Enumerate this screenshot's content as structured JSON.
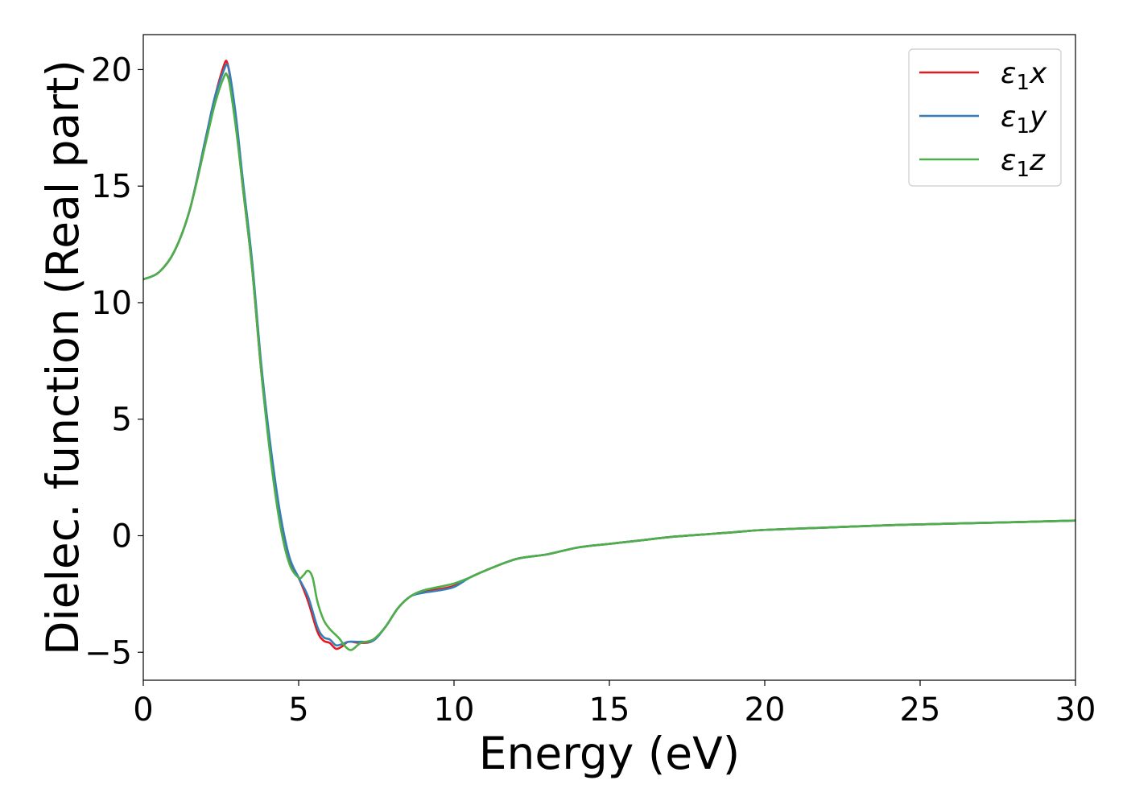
{
  "chart_data": {
    "type": "line",
    "title": "",
    "xlabel": "Energy (eV)",
    "ylabel": "Dielec. function (Real part)",
    "xlim": [
      0,
      30
    ],
    "ylim": [
      -6.2,
      21.5
    ],
    "xticks": [
      0,
      5,
      10,
      15,
      20,
      25,
      30
    ],
    "xtick_labels": [
      "0",
      "5",
      "10",
      "15",
      "20",
      "25",
      "30"
    ],
    "yticks": [
      -5,
      0,
      5,
      10,
      15,
      20
    ],
    "ytick_labels": [
      "−5",
      "0",
      "5",
      "10",
      "15",
      "20"
    ],
    "grid": false,
    "legend_position": "top-right",
    "series": [
      {
        "name": "ε₁x",
        "legend": {
          "base": "ε",
          "sub": "1",
          "var": "x"
        },
        "color": "#e41a1c",
        "x": [
          0,
          0.5,
          1.0,
          1.5,
          2.0,
          2.3,
          2.6,
          2.7,
          2.8,
          3.0,
          3.2,
          3.5,
          3.8,
          4.1,
          4.4,
          4.7,
          5.0,
          5.3,
          5.6,
          5.8,
          6.0,
          6.2,
          6.4,
          6.6,
          7.0,
          7.4,
          7.8,
          8.2,
          8.6,
          9.0,
          9.5,
          10.0,
          10.5,
          11.0,
          12.0,
          13.0,
          14.0,
          15.0,
          16.0,
          17.0,
          18.0,
          19.0,
          20.0,
          22.0,
          24.0,
          26.0,
          28.0,
          30.0
        ],
        "y": [
          11.0,
          11.3,
          12.2,
          14.0,
          17.0,
          18.8,
          20.2,
          20.3,
          19.6,
          17.5,
          15.0,
          11.5,
          7.0,
          3.5,
          0.8,
          -1.0,
          -1.8,
          -2.8,
          -4.1,
          -4.5,
          -4.6,
          -4.85,
          -4.75,
          -4.55,
          -4.6,
          -4.5,
          -3.9,
          -3.1,
          -2.6,
          -2.4,
          -2.3,
          -2.15,
          -1.8,
          -1.5,
          -1.0,
          -0.8,
          -0.5,
          -0.35,
          -0.2,
          -0.05,
          0.05,
          0.15,
          0.25,
          0.35,
          0.45,
          0.52,
          0.58,
          0.65
        ]
      },
      {
        "name": "ε₁y",
        "legend": {
          "base": "ε",
          "sub": "1",
          "var": "y"
        },
        "color": "#377eb8",
        "x": [
          0,
          0.5,
          1.0,
          1.5,
          2.0,
          2.3,
          2.6,
          2.7,
          2.8,
          3.0,
          3.2,
          3.5,
          3.8,
          4.1,
          4.4,
          4.7,
          5.0,
          5.3,
          5.6,
          5.8,
          6.0,
          6.2,
          6.4,
          6.6,
          7.0,
          7.4,
          7.8,
          8.2,
          8.6,
          9.0,
          9.5,
          10.0,
          10.5,
          11.0,
          12.0,
          13.0,
          14.0,
          15.0,
          16.0,
          17.0,
          18.0,
          19.0,
          20.0,
          22.0,
          24.0,
          26.0,
          28.0,
          30.0
        ],
        "y": [
          11.0,
          11.3,
          12.2,
          14.0,
          17.0,
          18.8,
          20.0,
          20.2,
          19.7,
          17.8,
          15.3,
          11.8,
          7.3,
          3.8,
          1.0,
          -0.9,
          -1.8,
          -2.6,
          -3.9,
          -4.35,
          -4.45,
          -4.7,
          -4.65,
          -4.55,
          -4.55,
          -4.5,
          -3.9,
          -3.1,
          -2.6,
          -2.45,
          -2.35,
          -2.2,
          -1.8,
          -1.5,
          -1.0,
          -0.8,
          -0.5,
          -0.35,
          -0.2,
          -0.05,
          0.05,
          0.15,
          0.25,
          0.35,
          0.45,
          0.52,
          0.58,
          0.65
        ]
      },
      {
        "name": "ε₁z",
        "legend": {
          "base": "ε",
          "sub": "1",
          "var": "z"
        },
        "color": "#4daf4a",
        "x": [
          0,
          0.5,
          1.0,
          1.5,
          2.0,
          2.3,
          2.6,
          2.7,
          2.8,
          3.0,
          3.2,
          3.5,
          3.8,
          4.1,
          4.4,
          4.7,
          5.0,
          5.15,
          5.3,
          5.45,
          5.6,
          5.8,
          6.0,
          6.3,
          6.5,
          6.7,
          7.0,
          7.4,
          7.8,
          8.2,
          8.6,
          9.0,
          9.5,
          10.0,
          10.5,
          11.0,
          12.0,
          13.0,
          14.0,
          15.0,
          16.0,
          17.0,
          18.0,
          19.0,
          20.0,
          22.0,
          24.0,
          26.0,
          28.0,
          30.0
        ],
        "y": [
          11.0,
          11.3,
          12.2,
          14.0,
          16.8,
          18.5,
          19.7,
          19.75,
          19.2,
          17.3,
          15.0,
          11.5,
          7.0,
          3.3,
          0.5,
          -1.2,
          -1.8,
          -1.7,
          -1.5,
          -1.8,
          -2.8,
          -3.6,
          -4.0,
          -4.4,
          -4.75,
          -4.9,
          -4.6,
          -4.45,
          -3.9,
          -3.1,
          -2.6,
          -2.35,
          -2.2,
          -2.05,
          -1.8,
          -1.5,
          -1.0,
          -0.8,
          -0.5,
          -0.35,
          -0.2,
          -0.05,
          0.05,
          0.15,
          0.25,
          0.35,
          0.45,
          0.52,
          0.58,
          0.65
        ]
      }
    ]
  }
}
